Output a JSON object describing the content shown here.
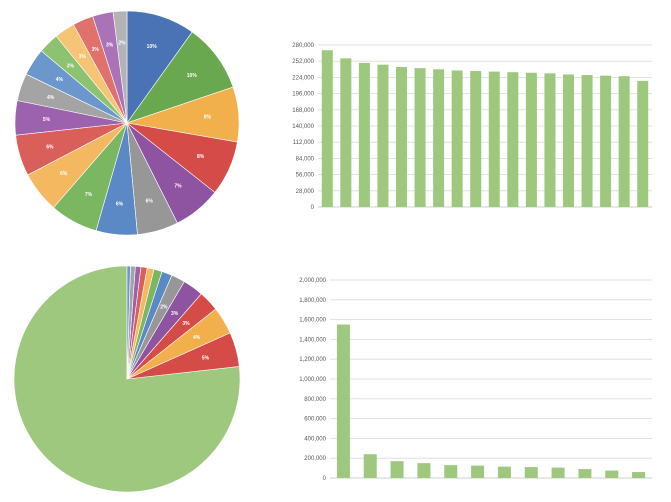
{
  "palette": [
    "#4a73b5",
    "#6aa84f",
    "#f1b04c",
    "#d44b47",
    "#8e53a1",
    "#979797",
    "#5b89c5",
    "#7bb660",
    "#f4b860",
    "#da5e5a",
    "#9c62ad",
    "#a4a4a4",
    "#6b97cc",
    "#8cc270",
    "#f5c474",
    "#e0716d",
    "#aa73b8",
    "#b3b3b3"
  ],
  "bar_color": "#9ec87e",
  "chart_data": [
    {
      "type": "pie",
      "values": [
        10,
        10,
        8,
        8,
        7,
        6,
        6,
        7,
        6,
        6,
        5,
        4,
        4,
        3,
        3,
        3,
        3,
        2
      ],
      "labels": [
        "10%",
        "10%",
        "8%",
        "8%",
        "7%",
        "6%",
        "6%",
        "7%",
        "6%",
        "6%",
        "5%",
        "4%",
        "4%",
        "3%",
        "3%",
        "3%",
        "3%",
        "2%"
      ],
      "start_angle_deg": 0,
      "direction": "clockwise"
    },
    {
      "type": "bar",
      "values": [
        271000,
        257000,
        249000,
        246000,
        242000,
        240000,
        238000,
        236000,
        235000,
        234000,
        233000,
        232000,
        231000,
        229000,
        228000,
        227000,
        226000,
        218000
      ],
      "yticks": [
        "0",
        "28,000",
        "56,000",
        "84,000",
        "112,000",
        "140,000",
        "168,000",
        "196,000",
        "224,000",
        "252,000",
        "280,000"
      ],
      "ylim": [
        0,
        280000
      ],
      "grid": true
    },
    {
      "type": "pie",
      "values": [
        78,
        5,
        4,
        3,
        3,
        2,
        1.5,
        1.2,
        1,
        0.9,
        0.8,
        0.7,
        0.5
      ],
      "labels": [
        "",
        "5%",
        "4%",
        "3%",
        "3%",
        "2%",
        "",
        "",
        "",
        "",
        "",
        "",
        ""
      ],
      "colors": [
        "#9ec87e",
        "#d44b47",
        "#f1b04c",
        "#d44b47",
        "#8e53a1",
        "#979797",
        "#5b89c5",
        "#7bb660",
        "#f4b860",
        "#da5e5a",
        "#9c62ad",
        "#a4a4a4",
        "#6b97cc"
      ],
      "start_angle_deg": 0,
      "direction": "counterclockwise"
    },
    {
      "type": "bar",
      "values": [
        1550000,
        240000,
        170000,
        150000,
        130000,
        125000,
        115000,
        110000,
        105000,
        90000,
        75000,
        60000
      ],
      "yticks": [
        "0",
        "200,000",
        "400,000",
        "600,000",
        "800,000",
        "1,000,000",
        "1,200,000",
        "1,400,000",
        "1,600,000",
        "1,800,000",
        "2,000,000"
      ],
      "ylim": [
        0,
        2000000
      ],
      "grid": true
    }
  ]
}
